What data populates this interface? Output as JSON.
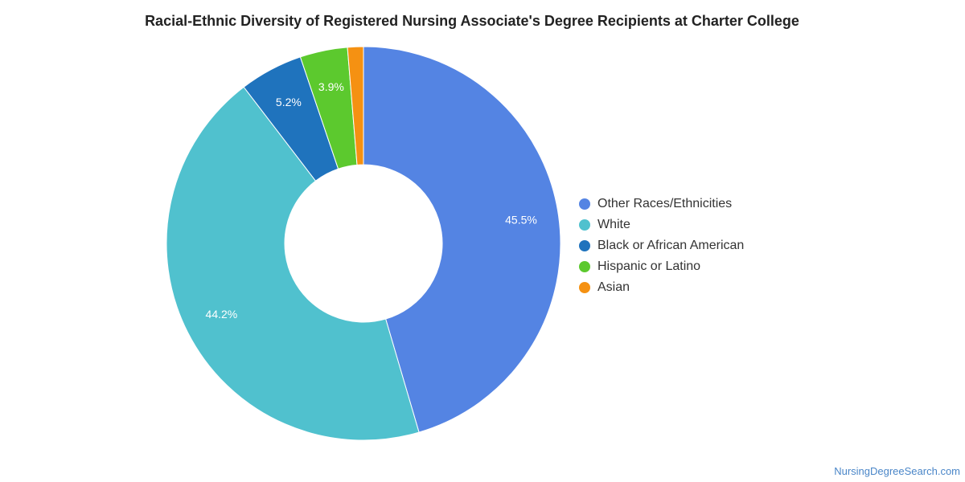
{
  "chart_data": {
    "type": "pie",
    "donut": true,
    "title": "Racial-Ethnic Diversity of Registered Nursing Associate's Degree Recipients at Charter College",
    "unit": "%",
    "legend_position": "right",
    "series": [
      {
        "name": "Other Races/Ethnicities",
        "value": 45.5,
        "label": "45.5%",
        "color": "#5484e3"
      },
      {
        "name": "White",
        "value": 44.2,
        "label": "44.2%",
        "color": "#50c1ce"
      },
      {
        "name": "Black or African American",
        "value": 5.2,
        "label": "5.2%",
        "color": "#1f73bd"
      },
      {
        "name": "Hispanic or Latino",
        "value": 3.9,
        "label": "3.9%",
        "color": "#5cc92e"
      },
      {
        "name": "Asian",
        "value": 1.3,
        "label": "",
        "color": "#f59112"
      }
    ]
  },
  "footer": {
    "credit": "NursingDegreeSearch.com"
  }
}
